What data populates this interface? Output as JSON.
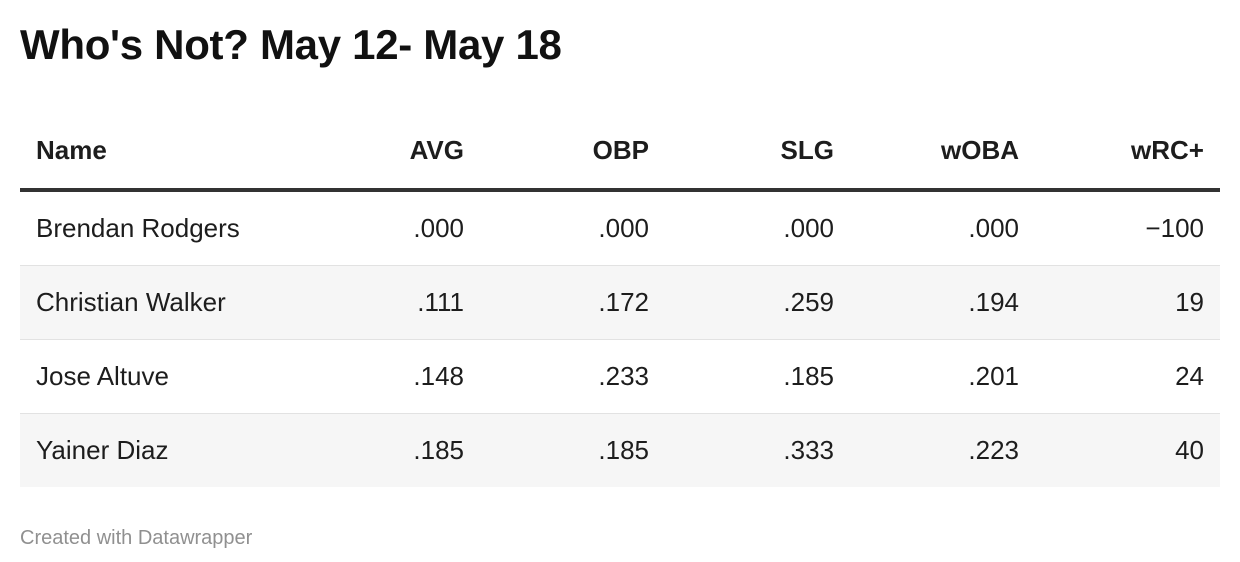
{
  "title": "Who's Not? May 12- May 18",
  "table": {
    "headers": [
      "Name",
      "AVG",
      "OBP",
      "SLG",
      "wOBA",
      "wRC+"
    ],
    "rows": [
      [
        "Brendan Rodgers",
        ".000",
        ".000",
        ".000",
        ".000",
        "−100"
      ],
      [
        "Christian Walker",
        ".111",
        ".172",
        ".259",
        ".194",
        "19"
      ],
      [
        "Jose Altuve",
        ".148",
        ".233",
        ".185",
        ".201",
        "24"
      ],
      [
        "Yainer Diaz",
        ".185",
        ".185",
        ".333",
        ".223",
        "40"
      ]
    ]
  },
  "footer": "Created with Datawrapper"
}
